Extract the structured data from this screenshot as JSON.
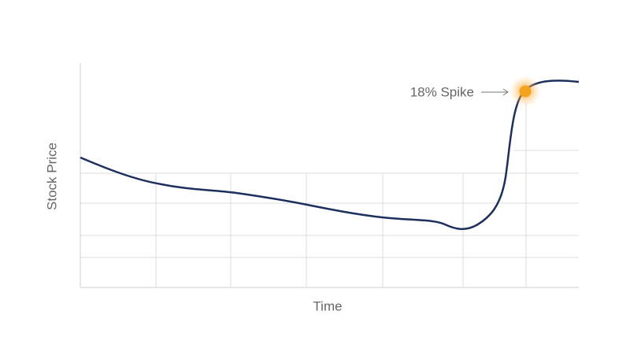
{
  "chart_data": {
    "type": "line",
    "x_label": "Time",
    "y_label": "Stock Price",
    "annotation": "18% Spike"
  }
}
